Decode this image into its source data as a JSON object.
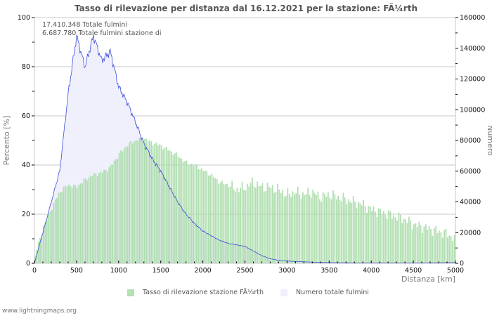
{
  "title": "Tasso di rilevazione per distanza dal 16.12.2021 per la stazione: FÃ¼rth",
  "info_lines": [
    "17.410.348 Totale fulmini",
    "6.687.780 Totale fulmini stazione di"
  ],
  "credit": "www.lightningmaps.org",
  "colors": {
    "bars": "#a8dca8",
    "area": "#f0f0fc",
    "line": "#3b4fd8",
    "grid": "#c8c8c8"
  },
  "legend": [
    {
      "label": "Tasso di rilevazione stazione FÃ¼rth",
      "color": "#b4e0b4"
    },
    {
      "label": "Numero totale fulmini",
      "color": "#f0f0fc"
    }
  ],
  "chart_data": {
    "type": "bar+area",
    "title": "Tasso di rilevazione per distanza dal 16.12.2021 per la stazione: FÃ¼rth",
    "xlabel": "Distanza   [km]",
    "ylabel_left": "Percento   [%]",
    "ylabel_right": "Numero",
    "xlim": [
      0,
      5000
    ],
    "ylim_left": [
      0,
      100
    ],
    "ylim_right": [
      0,
      160000
    ],
    "x_ticks": [
      "0",
      "500",
      "1000",
      "1500",
      "2000",
      "2500",
      "3000",
      "3500",
      "4000",
      "4500",
      "5000"
    ],
    "y_ticks_left": [
      "0",
      "20",
      "40",
      "60",
      "80",
      "100"
    ],
    "y_ticks_right": [
      "0",
      "20000",
      "40000",
      "60000",
      "80000",
      "100000",
      "120000",
      "140000",
      "160000"
    ],
    "grid": true,
    "legend_position": "bottom",
    "x": [
      0,
      100,
      200,
      300,
      400,
      500,
      600,
      700,
      800,
      900,
      1000,
      1100,
      1200,
      1300,
      1400,
      1500,
      1600,
      1700,
      1800,
      1900,
      2000,
      2100,
      2200,
      2300,
      2400,
      2500,
      2600,
      2700,
      2800,
      2900,
      3000,
      3100,
      3200,
      3300,
      3400,
      3500,
      3600,
      3700,
      3800,
      3900,
      4000,
      4100,
      4200,
      4300,
      4400,
      4500,
      4600,
      4700,
      4800,
      4900,
      5000
    ],
    "series": [
      {
        "name": "Tasso di rilevazione stazione FÃ¼rth",
        "axis": "left",
        "type": "bar",
        "values": [
          2,
          14,
          22,
          29,
          32,
          31,
          34,
          36,
          37,
          39,
          44,
          48,
          50,
          51,
          49,
          48,
          46,
          44,
          41,
          40,
          38,
          36,
          33,
          32,
          30,
          31,
          33,
          31,
          31,
          30,
          28,
          29,
          28,
          29,
          27,
          28,
          27,
          26,
          25,
          24,
          22,
          21,
          20,
          19,
          18,
          16,
          15,
          14,
          13,
          12,
          10
        ]
      },
      {
        "name": "Numero totale fulmini",
        "axis": "right",
        "type": "area",
        "values": [
          0,
          20000,
          40000,
          60000,
          110000,
          148000,
          128000,
          148000,
          132000,
          138000,
          115000,
          105000,
          92000,
          78000,
          68000,
          60000,
          50000,
          40000,
          32000,
          26000,
          21000,
          18000,
          15000,
          13000,
          12000,
          11000,
          8000,
          5000,
          3000,
          2000,
          1500,
          1200,
          1000,
          800,
          600,
          500,
          400,
          400,
          300,
          300,
          300,
          300,
          300,
          300,
          300,
          300,
          300,
          300,
          400,
          500,
          500
        ]
      }
    ]
  }
}
